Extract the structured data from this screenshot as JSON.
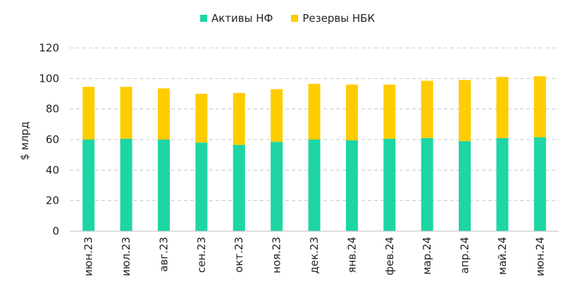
{
  "chart_data": {
    "type": "bar",
    "stacked": true,
    "categories": [
      "июн.23",
      "июл.23",
      "авг.23",
      "сен.23",
      "окт.23",
      "ноя.23",
      "дек.23",
      "янв.24",
      "фев.24",
      "мар.24",
      "апр.24",
      "май.24",
      "июн.24"
    ],
    "series": [
      {
        "name": "Активы НФ",
        "color": "#1dd6a3",
        "values": [
          60,
          60.5,
          60,
          58,
          56.5,
          58.5,
          60,
          59.5,
          60.5,
          61,
          59,
          61,
          61.5
        ]
      },
      {
        "name": "Резервы НБК",
        "color": "#ffcc00",
        "values": [
          34.5,
          34,
          33.5,
          32,
          34,
          34.5,
          36.5,
          36.5,
          35.5,
          37.5,
          40,
          40,
          40
        ]
      }
    ],
    "ylabel": "$ млрд",
    "ylim": [
      0,
      120
    ],
    "yticks": [
      "0",
      "20",
      "40",
      "60",
      "80",
      "100",
      "120"
    ],
    "grid": true,
    "legend": "top-center"
  }
}
